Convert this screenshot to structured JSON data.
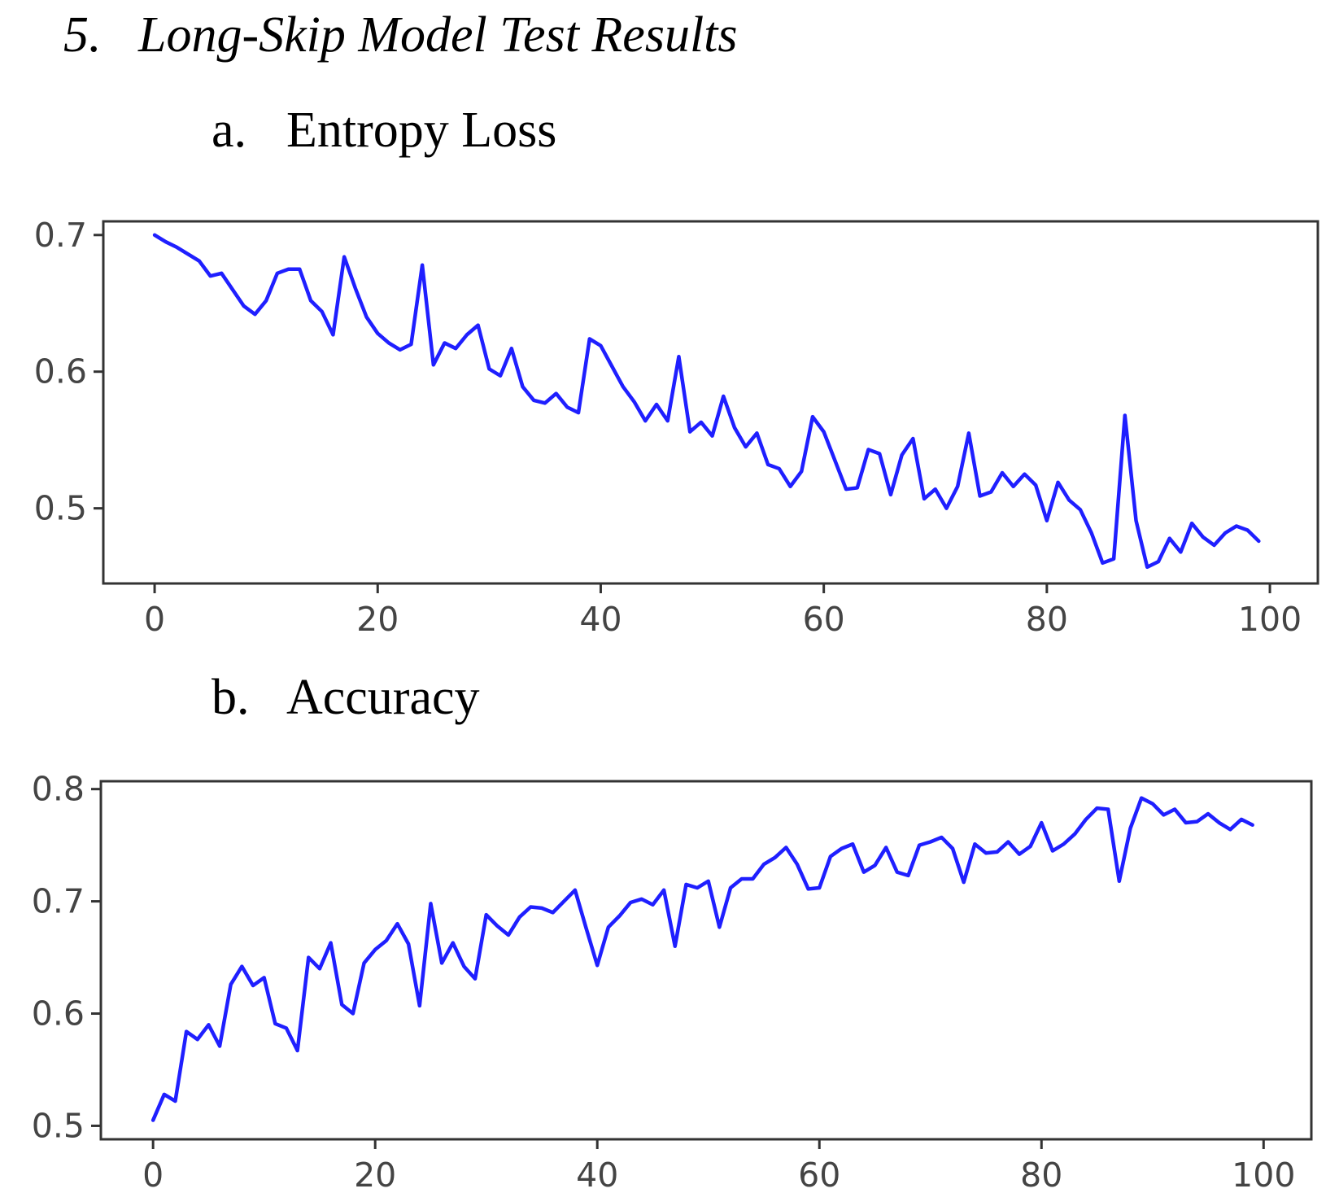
{
  "section": {
    "number": "5.",
    "title": "Long-Skip Model Test Results"
  },
  "subsections": [
    {
      "letter": "a.",
      "title": "Entropy Loss"
    },
    {
      "letter": "b.",
      "title": "Accuracy"
    }
  ],
  "colors": {
    "line": "#1f1fff",
    "axes": "#333333",
    "tick_text": "#444444"
  },
  "chart_data": [
    {
      "type": "line",
      "title": "",
      "xlabel": "",
      "ylabel": "",
      "xlim": [
        -4.6,
        104.3
      ],
      "ylim": [
        0.445,
        0.71
      ],
      "grid": false,
      "xticks": [
        0,
        20,
        40,
        60,
        80,
        100
      ],
      "yticks": [
        0.5,
        0.6,
        0.7
      ],
      "ytick_labels": [
        "0.5",
        "0.6",
        "0.7"
      ],
      "series": [
        {
          "x": [
            0,
            1,
            2,
            3,
            4,
            5,
            6,
            7,
            8,
            9,
            10,
            11,
            12,
            13,
            14,
            15,
            16,
            17,
            18,
            19,
            20,
            21,
            22,
            23,
            24,
            25,
            26,
            27,
            28,
            29,
            30,
            31,
            32,
            33,
            34,
            35,
            36,
            37,
            38,
            39,
            40,
            41,
            42,
            43,
            44,
            45,
            46,
            47,
            48,
            49,
            50,
            51,
            52,
            53,
            54,
            55,
            56,
            57,
            58,
            59,
            60,
            61,
            62,
            63,
            64,
            65,
            66,
            67,
            68,
            69,
            70,
            71,
            72,
            73,
            74,
            75,
            76,
            77,
            78,
            79,
            80,
            81,
            82,
            83,
            84,
            85,
            86,
            87,
            88,
            89,
            90,
            91,
            92,
            93,
            94,
            95,
            96,
            97,
            98,
            99
          ],
          "values": [
            0.7,
            0.695,
            0.691,
            0.686,
            0.681,
            0.67,
            0.672,
            0.66,
            0.648,
            0.642,
            0.652,
            0.672,
            0.675,
            0.675,
            0.652,
            0.644,
            0.627,
            0.684,
            0.661,
            0.64,
            0.628,
            0.621,
            0.616,
            0.62,
            0.678,
            0.605,
            0.621,
            0.617,
            0.627,
            0.634,
            0.602,
            0.597,
            0.617,
            0.589,
            0.579,
            0.577,
            0.584,
            0.574,
            0.57,
            0.624,
            0.619,
            0.604,
            0.589,
            0.578,
            0.564,
            0.576,
            0.564,
            0.611,
            0.556,
            0.563,
            0.553,
            0.582,
            0.559,
            0.545,
            0.555,
            0.532,
            0.529,
            0.516,
            0.527,
            0.567,
            0.556,
            0.535,
            0.514,
            0.515,
            0.543,
            0.54,
            0.51,
            0.539,
            0.551,
            0.507,
            0.514,
            0.5,
            0.516,
            0.555,
            0.509,
            0.512,
            0.526,
            0.516,
            0.525,
            0.517,
            0.491,
            0.519,
            0.506,
            0.499,
            0.482,
            0.46,
            0.463,
            0.568,
            0.491,
            0.457,
            0.461,
            0.478,
            0.468,
            0.489,
            0.479,
            0.473,
            0.482,
            0.487,
            0.484,
            0.476
          ]
        }
      ]
    },
    {
      "type": "line",
      "title": "",
      "xlabel": "",
      "ylabel": "",
      "xlim": [
        -4.7,
        104.3
      ],
      "ylim": [
        0.488,
        0.807
      ],
      "grid": false,
      "xticks": [
        0,
        20,
        40,
        60,
        80,
        100
      ],
      "yticks": [
        0.5,
        0.6,
        0.7,
        0.8
      ],
      "ytick_labels": [
        "0.5",
        "0.6",
        "0.7",
        "0.8"
      ],
      "series": [
        {
          "x": [
            0,
            1,
            2,
            3,
            4,
            5,
            6,
            7,
            8,
            9,
            10,
            11,
            12,
            13,
            14,
            15,
            16,
            17,
            18,
            19,
            20,
            21,
            22,
            23,
            24,
            25,
            26,
            27,
            28,
            29,
            30,
            31,
            32,
            33,
            34,
            35,
            36,
            37,
            38,
            39,
            40,
            41,
            42,
            43,
            44,
            45,
            46,
            47,
            48,
            49,
            50,
            51,
            52,
            53,
            54,
            55,
            56,
            57,
            58,
            59,
            60,
            61,
            62,
            63,
            64,
            65,
            66,
            67,
            68,
            69,
            70,
            71,
            72,
            73,
            74,
            75,
            76,
            77,
            78,
            79,
            80,
            81,
            82,
            83,
            84,
            85,
            86,
            87,
            88,
            89,
            90,
            91,
            92,
            93,
            94,
            95,
            96,
            97,
            98,
            99
          ],
          "values": [
            0.505,
            0.528,
            0.522,
            0.584,
            0.577,
            0.59,
            0.571,
            0.626,
            0.642,
            0.625,
            0.632,
            0.591,
            0.587,
            0.567,
            0.65,
            0.64,
            0.663,
            0.608,
            0.6,
            0.645,
            0.657,
            0.665,
            0.68,
            0.662,
            0.607,
            0.698,
            0.645,
            0.663,
            0.642,
            0.631,
            0.688,
            0.678,
            0.67,
            0.686,
            0.695,
            0.694,
            0.69,
            0.7,
            0.71,
            0.676,
            0.643,
            0.677,
            0.687,
            0.699,
            0.702,
            0.697,
            0.71,
            0.66,
            0.715,
            0.712,
            0.718,
            0.677,
            0.712,
            0.72,
            0.72,
            0.733,
            0.739,
            0.748,
            0.733,
            0.711,
            0.712,
            0.74,
            0.747,
            0.751,
            0.726,
            0.732,
            0.748,
            0.726,
            0.723,
            0.75,
            0.753,
            0.757,
            0.747,
            0.717,
            0.751,
            0.743,
            0.744,
            0.753,
            0.742,
            0.749,
            0.77,
            0.745,
            0.751,
            0.76,
            0.773,
            0.783,
            0.782,
            0.718,
            0.765,
            0.792,
            0.787,
            0.777,
            0.782,
            0.77,
            0.771,
            0.778,
            0.77,
            0.764,
            0.773,
            0.768
          ]
        }
      ]
    }
  ]
}
